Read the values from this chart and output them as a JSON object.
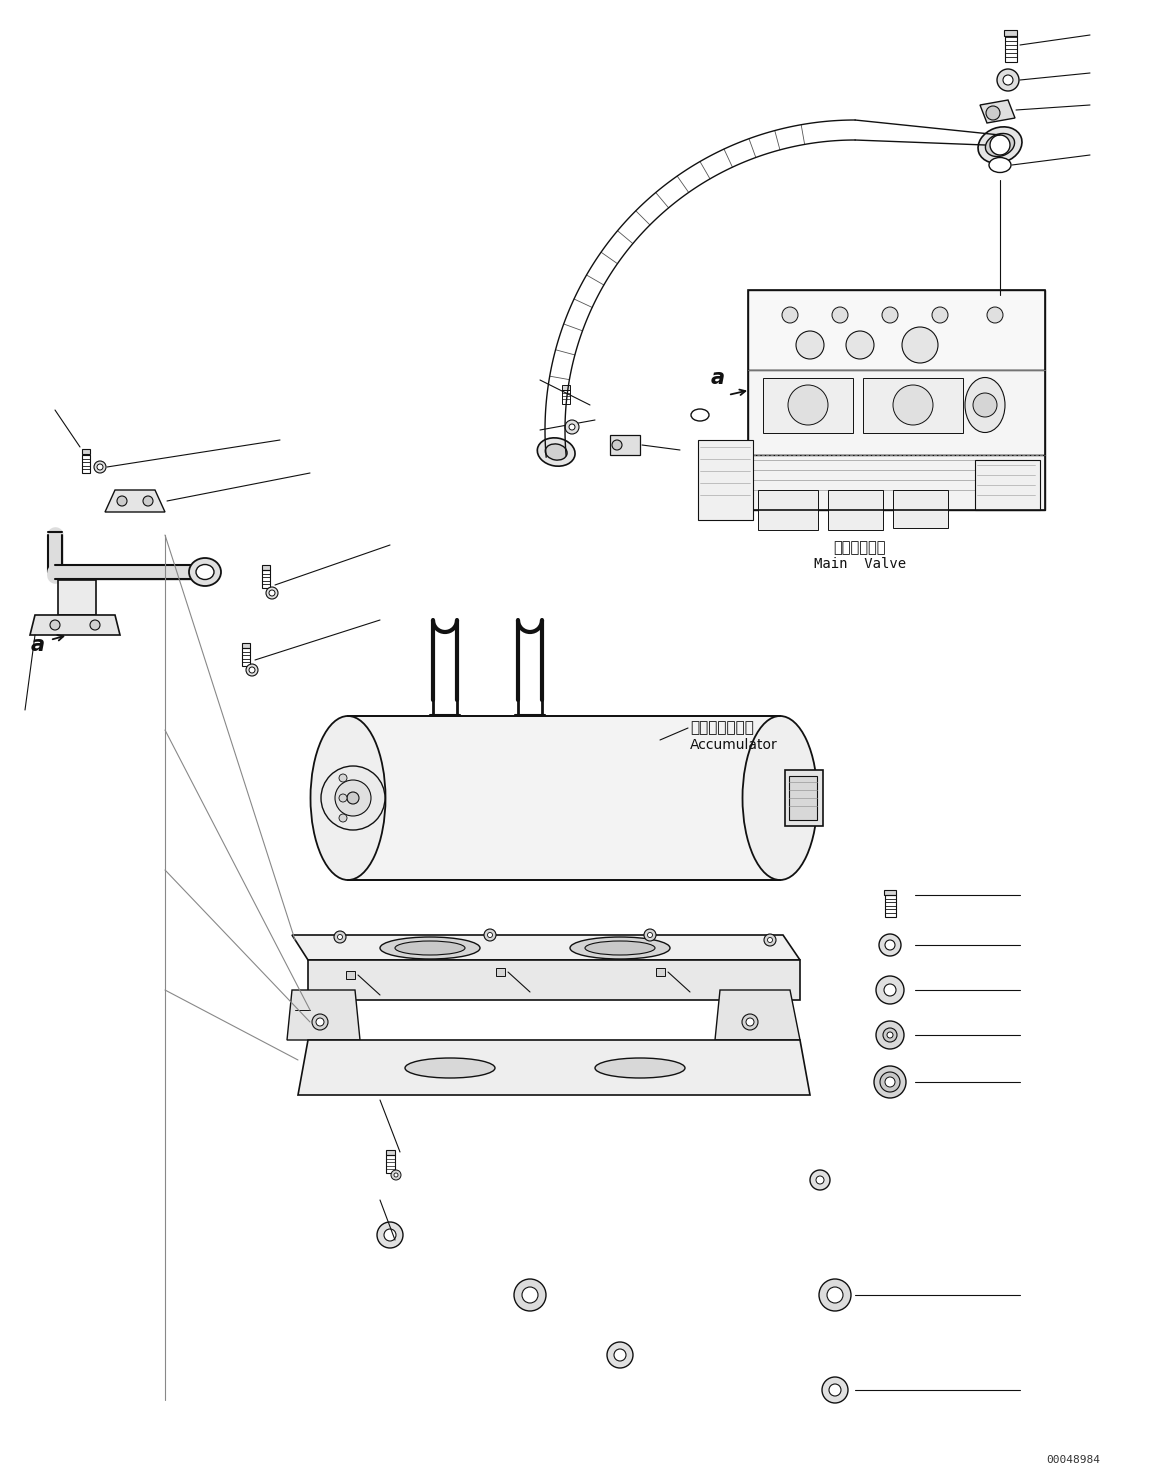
{
  "bg_color": "#ffffff",
  "line_color": "#111111",
  "fig_width": 11.51,
  "fig_height": 14.84,
  "dpi": 100,
  "watermark": "00048984",
  "label_main_valve_jp": "メインバルブ",
  "label_main_valve_en": "Main  Valve",
  "label_accumulator_jp": "アキュムレータ",
  "label_accumulator_en": "Accumulator",
  "label_a": "a"
}
